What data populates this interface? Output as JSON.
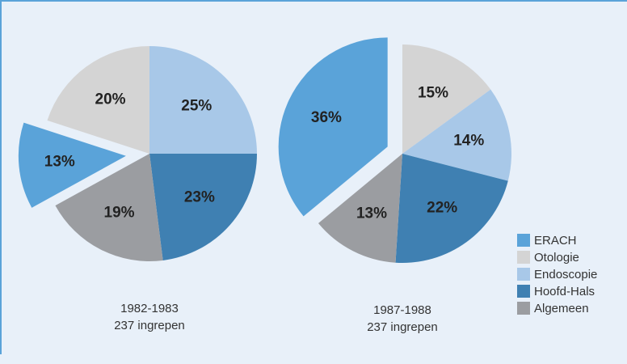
{
  "chart_data": [
    {
      "type": "pie",
      "title": "1982-1983",
      "subtitle": "237 ingrepen",
      "categories": [
        "ERACH",
        "Otologie",
        "Endoscopie",
        "Hoofd-Hals",
        "Algemeen"
      ],
      "values": [
        13,
        20,
        25,
        23,
        19
      ],
      "value_labels": [
        "13%",
        "20%",
        "25%",
        "23%",
        "19%"
      ],
      "colors": [
        "#5aa3d9",
        "#d4d4d4",
        "#a8c8e8",
        "#3f80b2",
        "#9b9da1"
      ],
      "startangle": 241.2,
      "explode": [
        0.22,
        0,
        0,
        0,
        0
      ],
      "legend": "lower right"
    },
    {
      "type": "pie",
      "title": "1987-1988",
      "subtitle": "237 ingrepen",
      "categories": [
        "ERACH",
        "Otologie",
        "Endoscopie",
        "Hoofd-Hals",
        "Algemeen"
      ],
      "values": [
        36,
        15,
        14,
        22,
        13
      ],
      "value_labels": [
        "36%",
        "15%",
        "14%",
        "22%",
        "13%"
      ],
      "colors": [
        "#5aa3d9",
        "#d4d4d4",
        "#a8c8e8",
        "#3f80b2",
        "#9b9da1"
      ],
      "startangle": 230.4,
      "explode": [
        0.15,
        0,
        0,
        0,
        0
      ]
    }
  ]
}
